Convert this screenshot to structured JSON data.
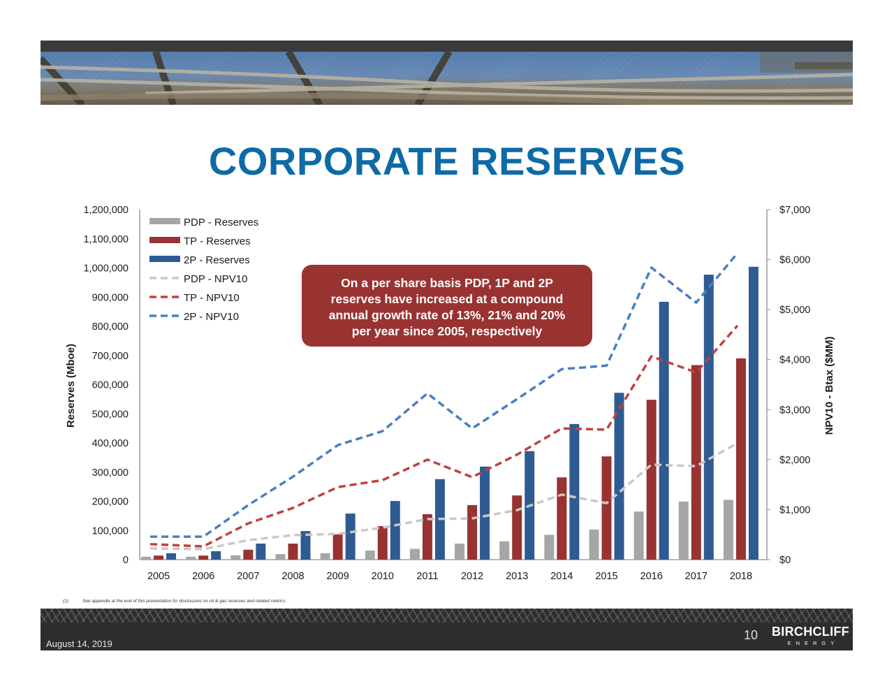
{
  "slide": {
    "title": "CORPORATE RESERVES",
    "callout": {
      "lines": [
        "On a per share basis PDP, 1P and 2P",
        "reserves have increased at a compound",
        "annual growth rate of 13%, 21% and 20%",
        "per year since 2005, respectively"
      ]
    },
    "footnote": {
      "marker": "(1)",
      "text": "See appendix at the end of this presentation for disclosures on oil & gas reserves and related metrics."
    },
    "footer": {
      "date": "August 14, 2019",
      "page_number": "10",
      "brand_name": "BIRCHCLIFF",
      "brand_sub": "ENERGY"
    },
    "colors": {
      "title": "#0e6aa6",
      "pdp": "#a6a6a6",
      "tp": "#983331",
      "twop": "#2f5b93",
      "pdp_line": "#c8c8c8",
      "tp_line": "#c0413f",
      "twop_line": "#4a7ec2",
      "callout_bg": "#983331"
    }
  },
  "chart_data": {
    "type": "bar",
    "title": "CORPORATE RESERVES",
    "categories": [
      "2005",
      "2006",
      "2007",
      "2008",
      "2009",
      "2010",
      "2011",
      "2012",
      "2013",
      "2014",
      "2015",
      "2016",
      "2017",
      "2018"
    ],
    "xlabel": "",
    "ylabel": "Reserves (Mboe)",
    "y2label": "NPV10 - Btax ($MM)",
    "ylim": [
      0,
      1200000
    ],
    "y2lim": [
      0,
      7000
    ],
    "yticks": [
      "0",
      "100,000",
      "200,000",
      "300,000",
      "400,000",
      "500,000",
      "600,000",
      "700,000",
      "800,000",
      "900,000",
      "1,000,000",
      "1,100,000",
      "1,200,000"
    ],
    "y2ticks": [
      "$0",
      "$1,000",
      "$2,000",
      "$3,000",
      "$4,000",
      "$5,000",
      "$6,000",
      "$7,000"
    ],
    "grid": false,
    "legend_position": "upper-left",
    "series": [
      {
        "name": "PDP - Reserves",
        "type": "bar",
        "axis": "left",
        "color": "#a6a6a6",
        "values": [
          10000,
          10000,
          15000,
          19000,
          22000,
          31000,
          37000,
          55000,
          63000,
          85000,
          103000,
          165000,
          199000,
          205000
        ]
      },
      {
        "name": "TP - Reserves",
        "type": "bar",
        "axis": "left",
        "color": "#983331",
        "values": [
          14000,
          14000,
          34000,
          55000,
          87000,
          115000,
          156000,
          187000,
          220000,
          282000,
          354000,
          548000,
          667000,
          690000
        ]
      },
      {
        "name": "2P - Reserves",
        "type": "bar",
        "axis": "left",
        "color": "#2f5b93",
        "values": [
          22000,
          29000,
          55000,
          98000,
          158000,
          201000,
          276000,
          319000,
          372000,
          465000,
          572000,
          884000,
          977000,
          1004000
        ]
      },
      {
        "name": "PDP - NPV10",
        "type": "line",
        "style": "dashed",
        "axis": "right",
        "color": "#c8c8c8",
        "values": [
          225,
          210,
          390,
          490,
          515,
          640,
          810,
          825,
          990,
          1300,
          1130,
          1900,
          1870,
          2330
        ]
      },
      {
        "name": "TP - NPV10",
        "type": "line",
        "style": "dashed",
        "axis": "right",
        "color": "#c0413f",
        "values": [
          310,
          265,
          725,
          1035,
          1450,
          1590,
          2000,
          1650,
          2100,
          2625,
          2600,
          4065,
          3745,
          4680
        ]
      },
      {
        "name": "2P - NPV10",
        "type": "line",
        "style": "dashed",
        "axis": "right",
        "color": "#4a7ec2",
        "values": [
          460,
          460,
          1090,
          1660,
          2290,
          2570,
          3325,
          2625,
          3210,
          3810,
          3880,
          5840,
          5140,
          6130
        ]
      }
    ],
    "annotations": [
      "On a per share basis PDP, 1P and 2P reserves have increased at a compound annual growth rate of 13%, 21% and 20% per year since 2005, respectively"
    ]
  }
}
